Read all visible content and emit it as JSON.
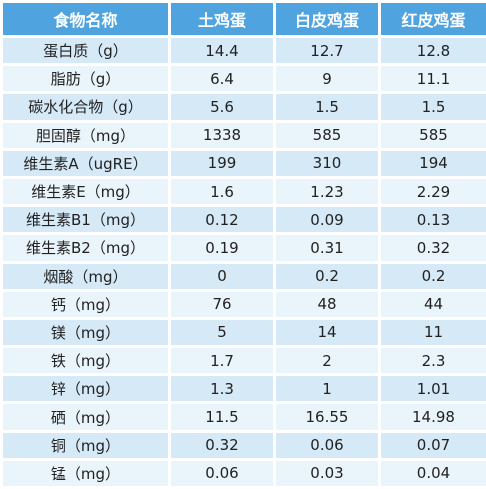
{
  "table": {
    "header": [
      "食物名称",
      "土鸡蛋",
      "白皮鸡蛋",
      "红皮鸡蛋"
    ],
    "rows": [
      [
        "蛋白质（g）",
        "14.4",
        "12.7",
        "12.8"
      ],
      [
        "脂肪（g）",
        "6.4",
        "9",
        "11.1"
      ],
      [
        "碳水化合物（g）",
        "5.6",
        "1.5",
        "1.5"
      ],
      [
        "胆固醇（mg）",
        "1338",
        "585",
        "585"
      ],
      [
        "维生素A（ugRE）",
        "199",
        "310",
        "194"
      ],
      [
        "维生素E（mg）",
        "1.6",
        "1.23",
        "2.29"
      ],
      [
        "维生素B1（mg）",
        "0.12",
        "0.09",
        "0.13"
      ],
      [
        "维生素B2（mg）",
        "0.19",
        "0.31",
        "0.32"
      ],
      [
        "烟酸（mg）",
        "0",
        "0.2",
        "0.2"
      ],
      [
        "钙（mg）",
        "76",
        "48",
        "44"
      ],
      [
        "镁（mg）",
        "5",
        "14",
        "11"
      ],
      [
        "铁（mg）",
        "1.7",
        "2",
        "2.3"
      ],
      [
        "锌（mg）",
        "1.3",
        "1",
        "1.01"
      ],
      [
        "硒（mg）",
        "11.5",
        "16.55",
        "14.98"
      ],
      [
        "铜（mg）",
        "0.32",
        "0.06",
        "0.07"
      ],
      [
        "锰（mg）",
        "0.06",
        "0.03",
        "0.04"
      ]
    ]
  }
}
